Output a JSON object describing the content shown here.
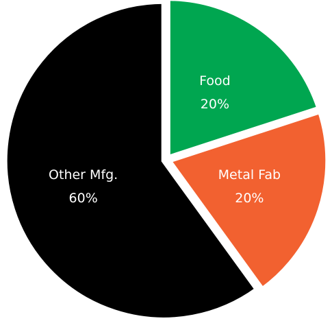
{
  "chart_data": {
    "type": "pie",
    "slices": [
      {
        "label": "Food",
        "value": 20,
        "value_label": "20%",
        "color": "#00a650",
        "text_color": "#ffffff"
      },
      {
        "label": "Metal Fab",
        "value": 20,
        "value_label": "20%",
        "color": "#f26130",
        "text_color": "#ffffff"
      },
      {
        "label": "Other Mfg.",
        "value": 60,
        "value_label": "60%",
        "color": "#000000",
        "text_color": "#ffffff"
      }
    ],
    "start_angle": "12 o'clock",
    "direction": "clockwise",
    "legend": "none",
    "slice_separator_color": "#ffffff"
  }
}
